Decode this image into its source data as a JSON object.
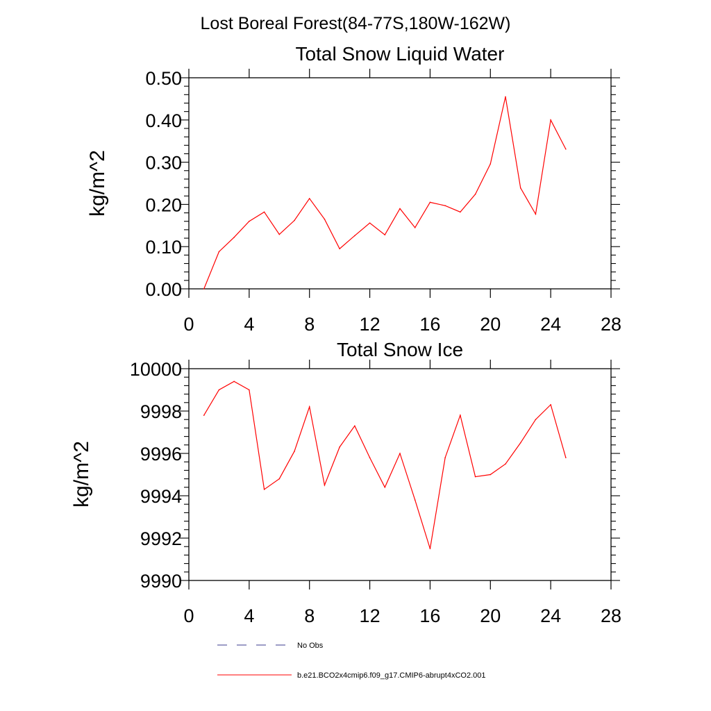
{
  "figure_title": "Lost Boreal Forest(84-77S,180W-162W)",
  "chart_data": [
    {
      "type": "line",
      "title": "Total Snow Liquid Water",
      "xlabel": "",
      "ylabel": "kg/m^2",
      "xlim": [
        0,
        28
      ],
      "ylim": [
        0.0,
        0.5
      ],
      "xticks": [
        0,
        4,
        8,
        12,
        16,
        20,
        24,
        28
      ],
      "xtick_labels": [
        "0",
        "4",
        "8",
        "12",
        "16",
        "20",
        "24",
        "28"
      ],
      "yticks": [
        0.0,
        0.1,
        0.2,
        0.3,
        0.4,
        0.5
      ],
      "ytick_labels": [
        "0.00",
        "0.10",
        "0.20",
        "0.30",
        "0.40",
        "0.50"
      ],
      "series": [
        {
          "name": "b.e21.BCO2x4cmip6.f09_g17.CMIP6-abrupt4xCO2.001",
          "color": "#ff0000",
          "x": [
            1,
            2,
            3,
            4,
            5,
            6,
            7,
            8,
            9,
            10,
            11,
            12,
            13,
            14,
            15,
            16,
            17,
            18,
            19,
            20,
            21,
            22,
            23,
            24,
            25
          ],
          "values": [
            0.0,
            0.088,
            0.122,
            0.16,
            0.182,
            0.129,
            0.162,
            0.214,
            0.165,
            0.095,
            0.126,
            0.156,
            0.128,
            0.19,
            0.145,
            0.205,
            0.197,
            0.182,
            0.224,
            0.296,
            0.455,
            0.239,
            0.177,
            0.4,
            0.331
          ]
        }
      ]
    },
    {
      "type": "line",
      "title": "Total Snow Ice",
      "xlabel": "",
      "ylabel": "kg/m^2",
      "xlim": [
        0,
        28
      ],
      "ylim": [
        9990,
        10000
      ],
      "xticks": [
        0,
        4,
        8,
        12,
        16,
        20,
        24,
        28
      ],
      "xtick_labels": [
        "0",
        "4",
        "8",
        "12",
        "16",
        "20",
        "24",
        "28"
      ],
      "yticks": [
        9990,
        9992,
        9994,
        9996,
        9998,
        10000
      ],
      "ytick_labels": [
        "9990",
        "9992",
        "9994",
        "9996",
        "9998",
        "10000"
      ],
      "series": [
        {
          "name": "b.e21.BCO2x4cmip6.f09_g17.CMIP6-abrupt4xCO2.001",
          "color": "#ff0000",
          "x": [
            1,
            2,
            3,
            4,
            5,
            6,
            7,
            8,
            9,
            10,
            11,
            12,
            13,
            14,
            15,
            16,
            17,
            18,
            19,
            20,
            21,
            22,
            23,
            24,
            25
          ],
          "values": [
            9997.8,
            9999.0,
            9999.4,
            9999.0,
            9994.3,
            9994.8,
            9996.1,
            9998.2,
            9994.5,
            9996.3,
            9997.3,
            9995.8,
            9994.4,
            9996.0,
            9993.8,
            9991.5,
            9995.8,
            9997.8,
            9994.9,
            9995.0,
            9995.5,
            9996.5,
            9997.6,
            9998.3,
            9995.8
          ]
        }
      ]
    }
  ],
  "legend": {
    "items": [
      {
        "label": "No Obs",
        "style": "dashed",
        "color": "#3a3a8c"
      },
      {
        "label": "b.e21.BCO2x4cmip6.f09_g17.CMIP6-abrupt4xCO2.001",
        "style": "solid",
        "color": "#ff0000"
      }
    ]
  }
}
